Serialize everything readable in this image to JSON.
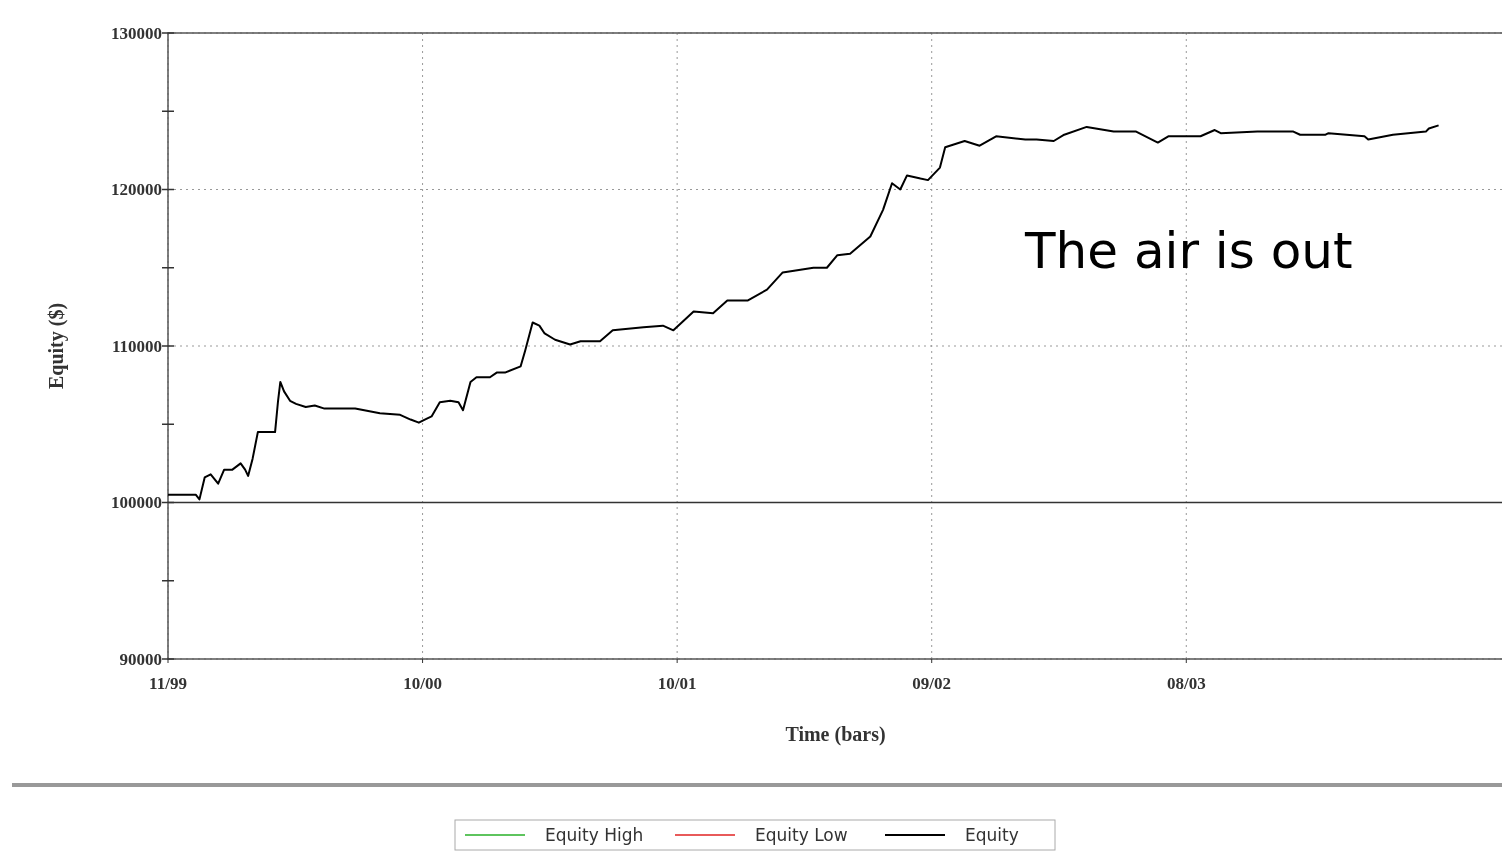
{
  "chart_data": {
    "type": "line",
    "xlabel": "Time (bars)",
    "ylabel": "Equity ($)",
    "annotations": [
      "The air is out"
    ],
    "x": [
      "1999-11-26",
      "2000-01-02",
      "2000-01-07",
      "2000-01-14",
      "2000-01-22",
      "2000-02-01",
      "2000-02-09",
      "2000-02-20",
      "2000-03-02",
      "2000-03-08",
      "2000-03-12",
      "2000-03-18",
      "2000-03-25",
      "2000-04-17",
      "2000-04-21",
      "2000-04-24",
      "2000-04-29",
      "2000-05-07",
      "2000-05-15",
      "2000-05-28",
      "2000-06-09",
      "2000-06-22",
      "2000-08-02",
      "2000-09-04",
      "2000-10-01",
      "2000-10-15",
      "2000-10-26",
      "2000-11-03",
      "2000-11-12",
      "2000-11-23",
      "2000-12-07",
      "2000-12-18",
      "2000-12-24",
      "2001-01-03",
      "2001-01-11",
      "2001-01-29",
      "2001-02-07",
      "2001-02-18",
      "2001-03-11",
      "2001-03-17",
      "2001-03-27",
      "2001-04-05",
      "2001-04-12",
      "2001-04-26",
      "2001-05-16",
      "2001-05-30",
      "2001-06-25",
      "2001-07-12",
      "2001-08-22",
      "2001-09-17",
      "2001-10-01",
      "2001-10-28",
      "2001-11-23",
      "2001-12-12",
      "2002-01-08",
      "2002-02-03",
      "2002-02-24",
      "2002-04-06",
      "2002-04-24",
      "2002-05-08",
      "2002-05-25",
      "2002-06-21",
      "2002-07-08",
      "2002-07-20",
      "2002-07-31",
      "2002-08-09",
      "2002-08-27",
      "2002-09-06",
      "2002-09-22",
      "2002-09-29",
      "2002-10-25",
      "2002-11-14",
      "2002-12-06",
      "2003-01-14",
      "2003-01-29",
      "2003-02-21",
      "2003-03-07",
      "2003-04-06",
      "2003-05-12",
      "2003-06-11",
      "2003-07-10",
      "2003-07-24",
      "2003-09-05",
      "2003-09-24",
      "2003-10-02",
      "2003-11-20",
      "2004-01-07",
      "2004-01-16",
      "2004-02-19",
      "2004-02-23",
      "2004-04-11",
      "2004-04-16",
      "2004-05-19",
      "2004-07-02",
      "2004-07-06",
      "2004-07-19"
    ],
    "series": [
      {
        "name": "Equity High",
        "color": "#5ec45e",
        "values": [
          null,
          null,
          null,
          null,
          null,
          null,
          null,
          null,
          null,
          null,
          null,
          null,
          null,
          null,
          null,
          null,
          null,
          null,
          null,
          null,
          null,
          null,
          null,
          null,
          null,
          null,
          null,
          null,
          null,
          null,
          null,
          null,
          null,
          null,
          null,
          null,
          null,
          null,
          null,
          null,
          null,
          null,
          null,
          null,
          null,
          null,
          null,
          null,
          null,
          null,
          null,
          null,
          null,
          null,
          null,
          null,
          null,
          null,
          null,
          null,
          null,
          null,
          null,
          null,
          null,
          null,
          null,
          null,
          null,
          null,
          null,
          null,
          null,
          null,
          null,
          null,
          null,
          null,
          null,
          null,
          null,
          null,
          null,
          null,
          null,
          null,
          null,
          null,
          null,
          null,
          null,
          null,
          null,
          null,
          null,
          null
        ]
      },
      {
        "name": "Equity Low",
        "color": "#e85a5a",
        "values": [
          null,
          null,
          null,
          null,
          null,
          null,
          null,
          null,
          null,
          null,
          null,
          null,
          null,
          null,
          null,
          null,
          null,
          null,
          null,
          null,
          null,
          null,
          null,
          null,
          null,
          null,
          null,
          null,
          null,
          null,
          null,
          null,
          null,
          null,
          null,
          null,
          null,
          null,
          null,
          null,
          null,
          null,
          null,
          null,
          null,
          null,
          null,
          null,
          null,
          null,
          null,
          null,
          null,
          null,
          null,
          null,
          null,
          null,
          null,
          null,
          null,
          null,
          null,
          null,
          null,
          null,
          null,
          null,
          null,
          null,
          null,
          null,
          null,
          null,
          null,
          null,
          null,
          null,
          null,
          null,
          null,
          null,
          null,
          null,
          null,
          null,
          null,
          null,
          null,
          null,
          null,
          null,
          null,
          null,
          null,
          null
        ]
      },
      {
        "name": "Equity",
        "color": "#000000",
        "values": [
          100500,
          100500,
          100200,
          101600,
          101800,
          101200,
          102100,
          102100,
          102500,
          102100,
          101700,
          102800,
          104500,
          104500,
          106500,
          107700,
          107100,
          106500,
          106300,
          106100,
          106200,
          106000,
          106000,
          105700,
          105600,
          105300,
          105100,
          105300,
          105500,
          106400,
          106500,
          106400,
          105900,
          107700,
          108000,
          108000,
          108300,
          108300,
          108700,
          109700,
          111500,
          111300,
          110800,
          110400,
          110100,
          110300,
          110300,
          111000,
          111200,
          111300,
          111000,
          112200,
          112100,
          112900,
          112900,
          113600,
          114700,
          115000,
          115000,
          115800,
          115900,
          117000,
          118700,
          120400,
          120000,
          120900,
          120700,
          120600,
          121400,
          122700,
          123100,
          122800,
          123400,
          123200,
          123200,
          123100,
          123500,
          124000,
          123700,
          123700,
          123000,
          123400,
          123400,
          123800,
          123600,
          123700,
          123700,
          123500,
          123500,
          123600,
          123400,
          123200,
          123500,
          123700,
          123900,
          124100
        ]
      }
    ],
    "xlim": [
      "1999-11-26",
      "2004-10-13"
    ],
    "xticks": [
      {
        "value": "1999-11-26",
        "label": "11/99"
      },
      {
        "value": "2000-10-31",
        "label": "10/00"
      },
      {
        "value": "2001-10-06",
        "label": "10/01"
      },
      {
        "value": "2002-09-11",
        "label": "09/02"
      },
      {
        "value": "2003-08-17",
        "label": "08/03"
      }
    ],
    "ylim": [
      90000,
      130000
    ],
    "yticks": [
      90000,
      {
        "value": 95000,
        "label": null
      },
      100000,
      {
        "value": 105000,
        "label": null
      },
      110000,
      {
        "value": 115000,
        "label": null
      },
      120000,
      {
        "value": 125000,
        "label": null
      },
      130000
    ],
    "ref_lines": [
      {
        "axis": "y",
        "value": 100000,
        "color": "#333333",
        "line_style": "solid"
      }
    ],
    "grid": true,
    "legend": "bottom",
    "marker": "none",
    "line_style": "solid"
  }
}
